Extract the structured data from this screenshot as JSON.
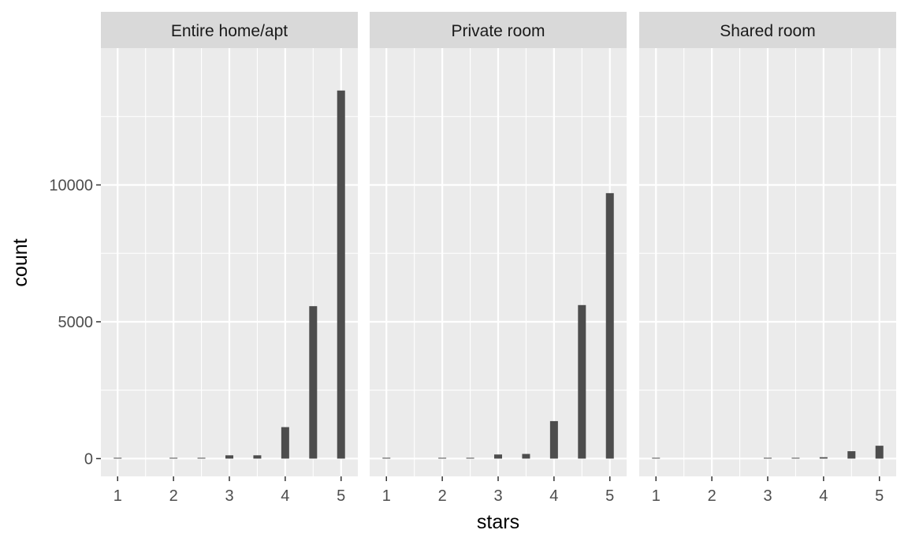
{
  "chart_data": {
    "type": "bar",
    "xlabel": "stars",
    "ylabel": "count",
    "xlim": [
      0.7,
      5.3
    ],
    "ylim": [
      -650,
      15000
    ],
    "x_ticks": [
      "1",
      "2",
      "3",
      "4",
      "5"
    ],
    "y_ticks": [
      "0",
      "5000",
      "10000"
    ],
    "x_minor_grid": [
      1.5,
      2.5,
      3.5,
      4.5
    ],
    "y_minor_grid": [
      2500,
      7500,
      12500
    ],
    "facets": [
      {
        "label": "Entire home/apt",
        "bars": [
          {
            "x": 1,
            "count": 20
          },
          {
            "x": 2,
            "count": 10
          },
          {
            "x": 2.5,
            "count": 15
          },
          {
            "x": 3,
            "count": 120
          },
          {
            "x": 3.5,
            "count": 120
          },
          {
            "x": 4,
            "count": 1150
          },
          {
            "x": 4.5,
            "count": 5570
          },
          {
            "x": 5,
            "count": 13450
          }
        ]
      },
      {
        "label": "Private room",
        "bars": [
          {
            "x": 1,
            "count": 30
          },
          {
            "x": 2,
            "count": 20
          },
          {
            "x": 2.5,
            "count": 25
          },
          {
            "x": 3,
            "count": 150
          },
          {
            "x": 3.5,
            "count": 170
          },
          {
            "x": 4,
            "count": 1370
          },
          {
            "x": 4.5,
            "count": 5610
          },
          {
            "x": 5,
            "count": 9700
          }
        ]
      },
      {
        "label": "Shared room",
        "bars": [
          {
            "x": 1,
            "count": 5
          },
          {
            "x": 3,
            "count": 15
          },
          {
            "x": 3.5,
            "count": 10
          },
          {
            "x": 4,
            "count": 50
          },
          {
            "x": 4.5,
            "count": 270
          },
          {
            "x": 5,
            "count": 470
          }
        ]
      }
    ],
    "colors": {
      "bar": "#4d4d4d",
      "panel_bg": "#ebebeb",
      "strip_bg": "#d9d9d9",
      "grid": "#ffffff"
    },
    "grid": true,
    "legend": "none"
  }
}
